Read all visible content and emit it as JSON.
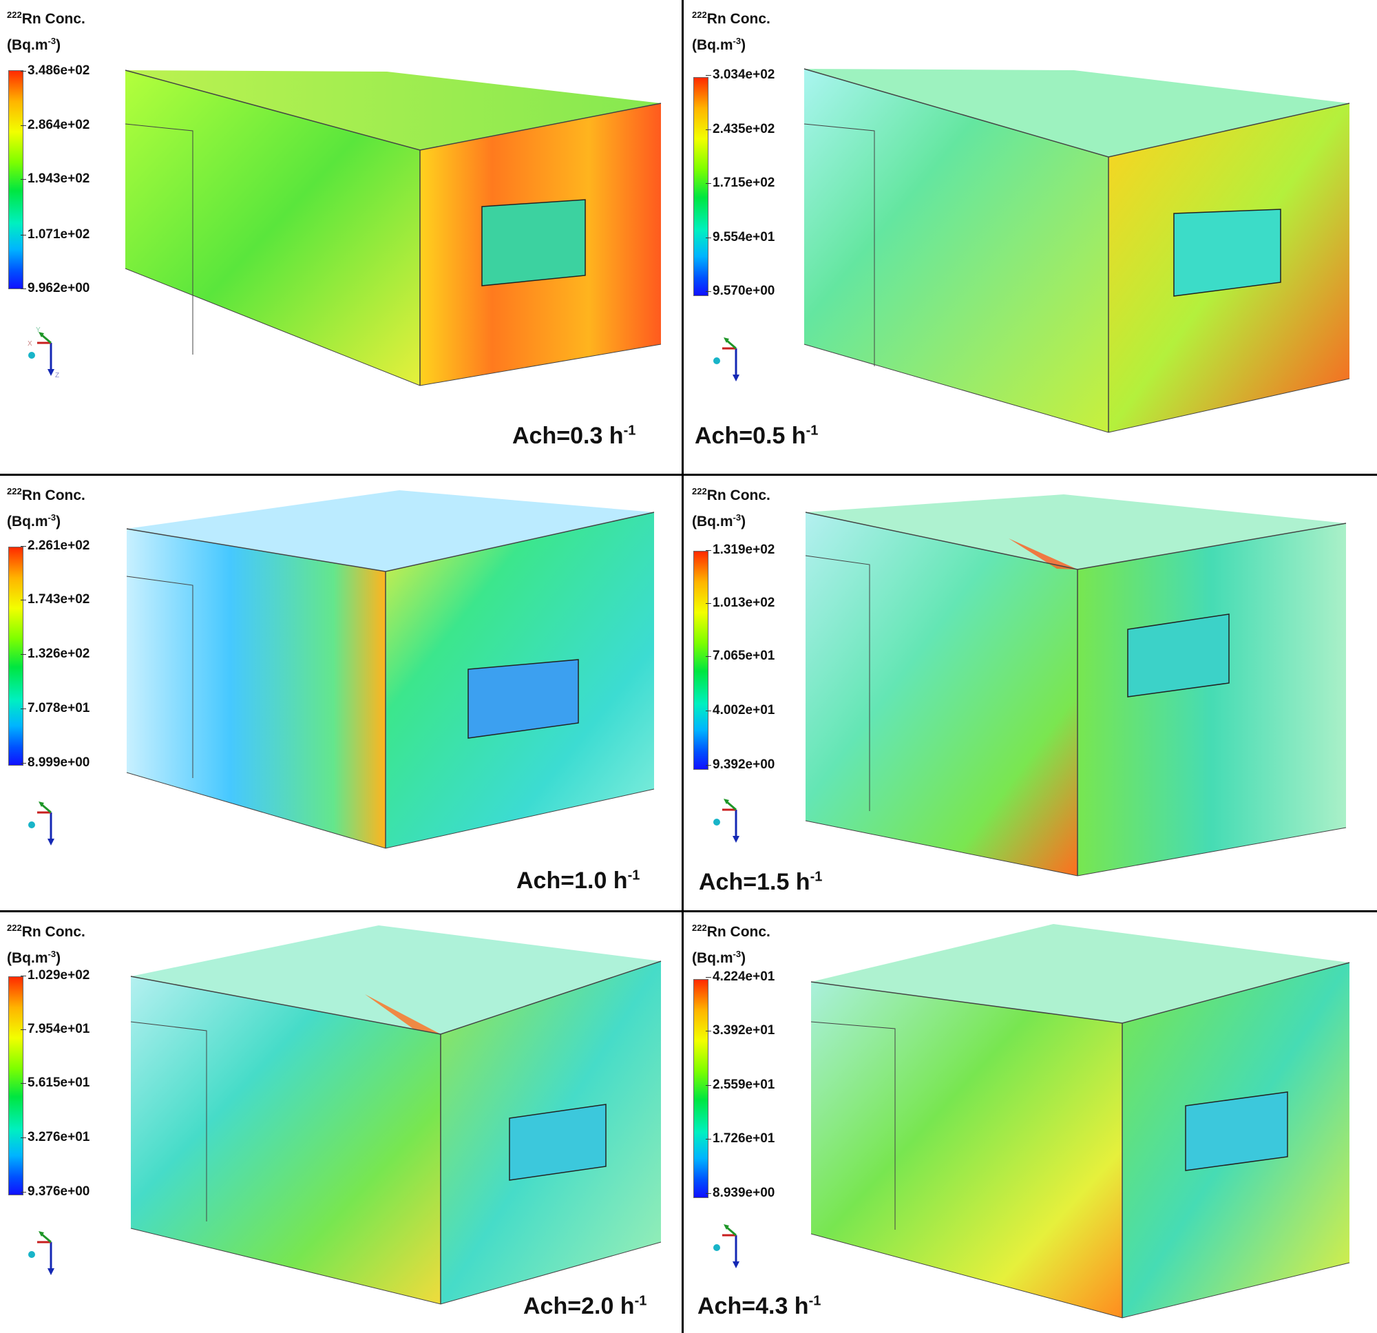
{
  "header": {
    "iso": "222",
    "title_rest": "Rn Conc.",
    "unit_base": "(Bq.m",
    "unit_exp": "-3",
    "unit_close": ")"
  },
  "triad": {
    "y": "Y",
    "x": "X",
    "z": "Z"
  },
  "panels": [
    {
      "ach_base": "Ach=0.3 h",
      "ach_exp": "-1",
      "ticks": [
        "3.486e+02",
        "2.864e+02",
        "1.943e+02",
        "1.071e+02",
        "9.962e+00"
      ]
    },
    {
      "ach_base": "Ach=0.5 h",
      "ach_exp": "-1",
      "ticks": [
        "3.034e+02",
        "2.435e+02",
        "1.715e+02",
        "9.554e+01",
        "9.570e+00"
      ]
    },
    {
      "ach_base": "Ach=1.0 h",
      "ach_exp": "-1",
      "ticks": [
        "2.261e+02",
        "1.743e+02",
        "1.326e+02",
        "7.078e+01",
        "8.999e+00"
      ]
    },
    {
      "ach_base": "Ach=1.5 h",
      "ach_exp": "-1",
      "ticks": [
        "1.319e+02",
        "1.013e+02",
        "7.065e+01",
        "4.002e+01",
        "9.392e+00"
      ]
    },
    {
      "ach_base": "Ach=2.0 h",
      "ach_exp": "-1",
      "ticks": [
        "1.029e+02",
        "7.954e+01",
        "5.615e+01",
        "3.276e+01",
        "9.376e+00"
      ]
    },
    {
      "ach_base": "Ach=4.3 h",
      "ach_exp": "-1",
      "ticks": [
        "4.224e+01",
        "3.392e+01",
        "2.559e+01",
        "1.726e+01",
        "8.939e+00"
      ]
    }
  ],
  "colors": {
    "hot": "#ff3c00",
    "warm": "#ffd200",
    "mid": "#66e000",
    "cool": "#00e6c8",
    "cold": "#1a6bff"
  }
}
